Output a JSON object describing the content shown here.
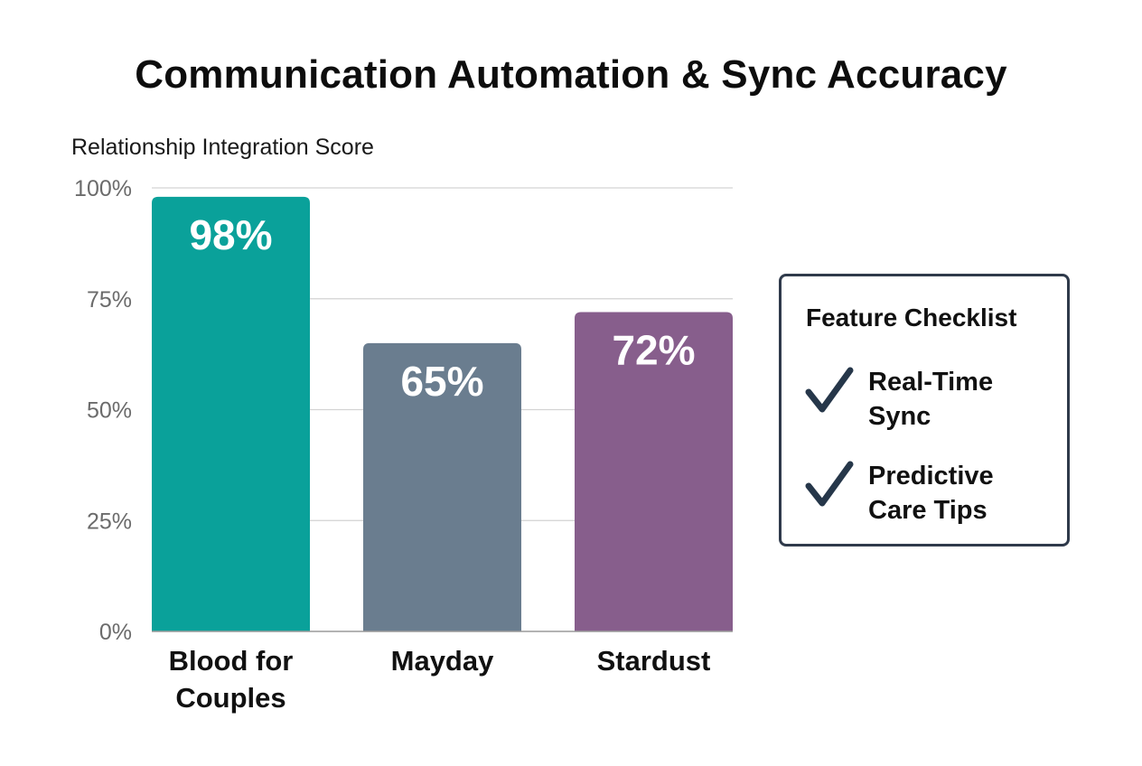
{
  "chart_data": {
    "type": "bar",
    "title": "Communication Automation & Sync Accuracy",
    "ylabel": "Relationship Integration Score",
    "xlabel": "",
    "categories": [
      "Blood for Couples",
      "Mayday",
      "Stardust"
    ],
    "category_lines": [
      [
        "Blood for",
        "Couples"
      ],
      [
        "Mayday"
      ],
      [
        "Stardust"
      ]
    ],
    "values": [
      98,
      65,
      72
    ],
    "value_labels": [
      "98%",
      "65%",
      "72%"
    ],
    "colors": [
      "#0aa19a",
      "#6a7d8f",
      "#875e8c"
    ],
    "ylim": [
      0,
      100
    ],
    "yticks": [
      0,
      25,
      50,
      75,
      100
    ],
    "ytick_labels": [
      "0%",
      "25%",
      "50%",
      "75%",
      "100%"
    ],
    "grid": true
  },
  "checklist": {
    "title": "Feature Checklist",
    "items": [
      {
        "label": "Real-Time Sync",
        "icon": "check-icon"
      },
      {
        "label": "Predictive Care Tips",
        "icon": "check-icon"
      }
    ],
    "check_color": "#26374a",
    "border_color": "#2f3a4b"
  }
}
